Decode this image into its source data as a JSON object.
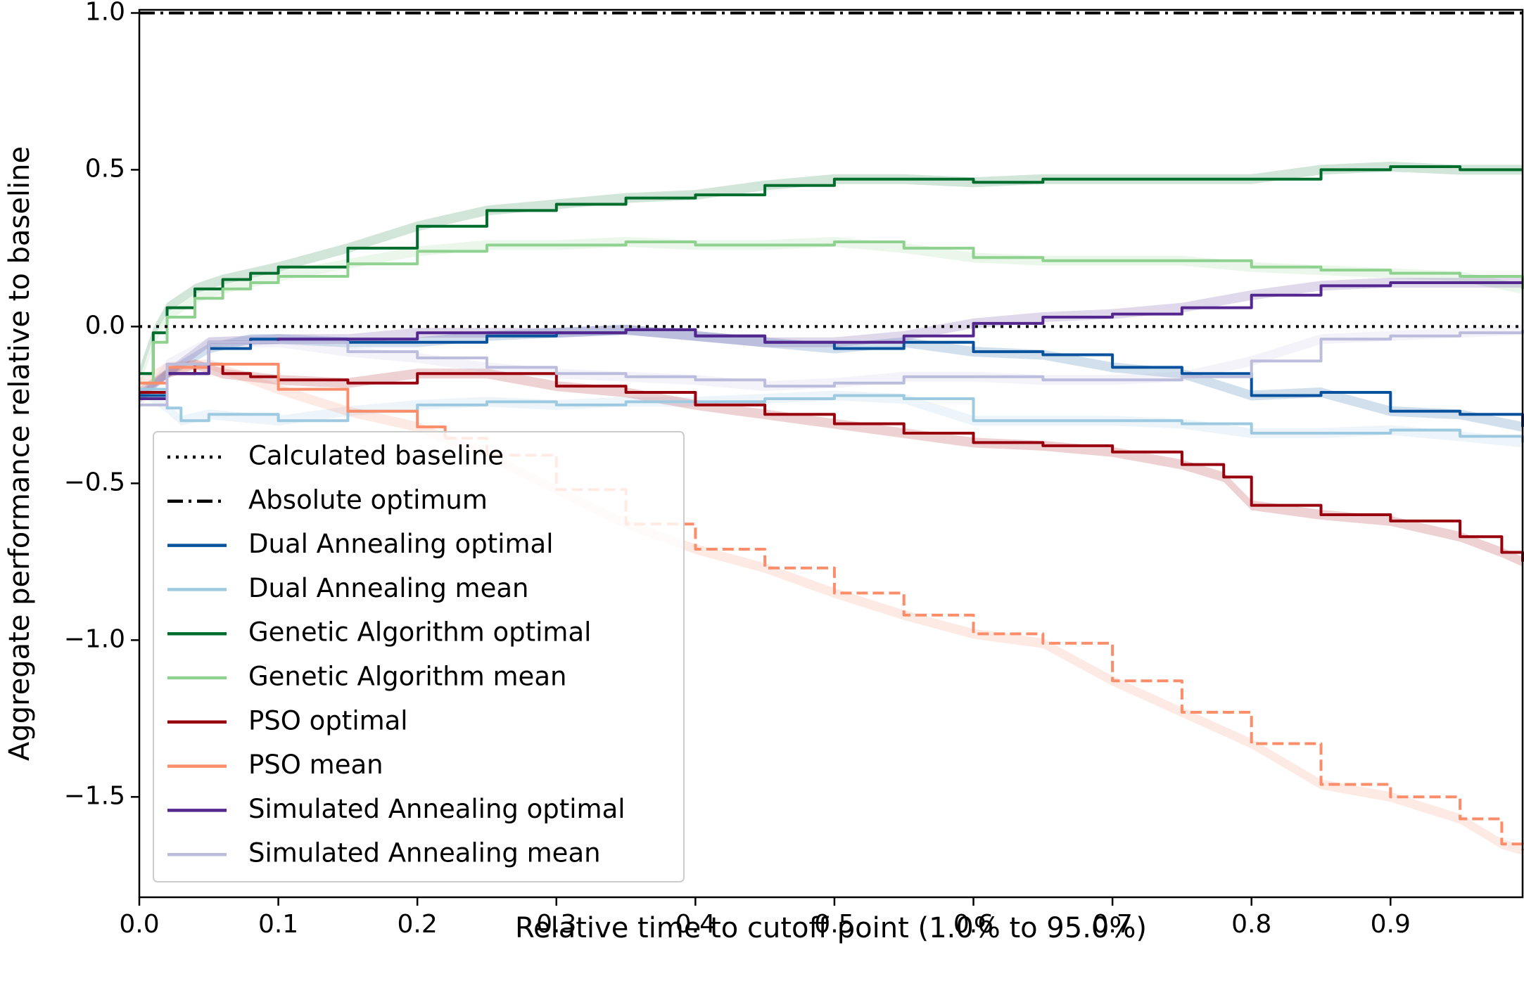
{
  "chart_data": {
    "type": "line",
    "title": "",
    "xlabel": "Relative time to cutoff point (1.0% to 95.0%)",
    "ylabel": "Aggregate performance relative to baseline",
    "xlim": [
      0.0,
      0.995
    ],
    "ylim": [
      -1.82,
      1.01
    ],
    "xticks": [
      0.0,
      0.1,
      0.2,
      0.3,
      0.4,
      0.5,
      0.6,
      0.7,
      0.8,
      0.9
    ],
    "xtick_labels": [
      "0.0",
      "0.1",
      "0.2",
      "0.3",
      "0.4",
      "0.5",
      "0.6",
      "0.7",
      "0.8",
      "0.9"
    ],
    "yticks": [
      1.0,
      0.5,
      0.0,
      -0.5,
      -1.0,
      -1.5
    ],
    "ytick_labels": [
      "1.0",
      "0.5",
      "0.0",
      "−0.5",
      "−1.0",
      "−1.5"
    ],
    "grid": false,
    "legend_position": "lower-left",
    "reference_lines": [
      {
        "name": "Calculated baseline",
        "y": 0.0,
        "style": "dotted",
        "color": "#000000"
      },
      {
        "name": "Absolute optimum",
        "y": 1.0,
        "style": "dashdot",
        "color": "#000000"
      }
    ],
    "series": [
      {
        "name": "Dual Annealing optimal",
        "color": "#08519c",
        "dashed": false,
        "x": [
          0.0,
          0.02,
          0.05,
          0.08,
          0.1,
          0.15,
          0.2,
          0.25,
          0.3,
          0.35,
          0.4,
          0.45,
          0.5,
          0.55,
          0.6,
          0.65,
          0.7,
          0.75,
          0.8,
          0.85,
          0.9,
          0.95,
          0.995
        ],
        "y": [
          -0.22,
          -0.15,
          -0.07,
          -0.04,
          -0.04,
          -0.05,
          -0.05,
          -0.03,
          -0.02,
          -0.01,
          -0.03,
          -0.05,
          -0.07,
          -0.05,
          -0.08,
          -0.09,
          -0.13,
          -0.15,
          -0.22,
          -0.21,
          -0.27,
          -0.28,
          -0.32
        ]
      },
      {
        "name": "Dual Annealing mean",
        "color": "#9ecae1",
        "dashed": false,
        "x": [
          0.0,
          0.02,
          0.03,
          0.05,
          0.1,
          0.15,
          0.2,
          0.25,
          0.3,
          0.35,
          0.4,
          0.45,
          0.5,
          0.55,
          0.6,
          0.65,
          0.7,
          0.75,
          0.8,
          0.85,
          0.9,
          0.95,
          0.995
        ],
        "y": [
          -0.2,
          -0.26,
          -0.3,
          -0.28,
          -0.3,
          -0.27,
          -0.25,
          -0.24,
          -0.25,
          -0.24,
          -0.24,
          -0.23,
          -0.22,
          -0.23,
          -0.3,
          -0.3,
          -0.3,
          -0.31,
          -0.34,
          -0.34,
          -0.33,
          -0.35,
          -0.37
        ]
      },
      {
        "name": "Genetic Algorithm optimal",
        "color": "#006d2c",
        "dashed": false,
        "x": [
          0.0,
          0.01,
          0.02,
          0.04,
          0.06,
          0.08,
          0.1,
          0.15,
          0.2,
          0.25,
          0.3,
          0.35,
          0.4,
          0.45,
          0.5,
          0.55,
          0.6,
          0.65,
          0.7,
          0.75,
          0.8,
          0.85,
          0.9,
          0.95,
          0.995
        ],
        "y": [
          -0.15,
          -0.02,
          0.06,
          0.12,
          0.15,
          0.17,
          0.19,
          0.25,
          0.32,
          0.37,
          0.39,
          0.41,
          0.42,
          0.45,
          0.47,
          0.47,
          0.46,
          0.47,
          0.47,
          0.47,
          0.47,
          0.5,
          0.51,
          0.5,
          0.5
        ]
      },
      {
        "name": "Genetic Algorithm mean",
        "color": "#8fd18e",
        "dashed": false,
        "x": [
          0.0,
          0.01,
          0.02,
          0.04,
          0.06,
          0.08,
          0.1,
          0.15,
          0.2,
          0.25,
          0.3,
          0.35,
          0.4,
          0.45,
          0.5,
          0.55,
          0.6,
          0.65,
          0.7,
          0.75,
          0.8,
          0.85,
          0.9,
          0.95,
          0.995
        ],
        "y": [
          -0.18,
          -0.05,
          0.03,
          0.09,
          0.12,
          0.14,
          0.16,
          0.2,
          0.24,
          0.26,
          0.26,
          0.27,
          0.26,
          0.26,
          0.27,
          0.25,
          0.22,
          0.21,
          0.21,
          0.21,
          0.19,
          0.18,
          0.17,
          0.16,
          0.12
        ]
      },
      {
        "name": "PSO optimal",
        "color": "#99000d",
        "dashed": false,
        "x": [
          0.0,
          0.02,
          0.04,
          0.06,
          0.08,
          0.1,
          0.15,
          0.2,
          0.25,
          0.3,
          0.35,
          0.4,
          0.45,
          0.5,
          0.55,
          0.6,
          0.65,
          0.7,
          0.75,
          0.78,
          0.8,
          0.85,
          0.9,
          0.95,
          0.98,
          0.995
        ],
        "y": [
          -0.21,
          -0.15,
          -0.12,
          -0.15,
          -0.16,
          -0.17,
          -0.18,
          -0.15,
          -0.15,
          -0.19,
          -0.21,
          -0.25,
          -0.28,
          -0.31,
          -0.34,
          -0.37,
          -0.38,
          -0.4,
          -0.44,
          -0.48,
          -0.57,
          -0.6,
          -0.62,
          -0.67,
          -0.72,
          -0.75
        ]
      },
      {
        "name": "PSO mean",
        "color": "#fc8d6a",
        "dashed": true,
        "dashed_from_x": 0.22,
        "x": [
          0.0,
          0.02,
          0.05,
          0.1,
          0.15,
          0.2,
          0.25,
          0.3,
          0.35,
          0.4,
          0.45,
          0.5,
          0.55,
          0.6,
          0.65,
          0.7,
          0.75,
          0.8,
          0.85,
          0.9,
          0.95,
          0.98,
          0.995
        ],
        "y": [
          -0.18,
          -0.13,
          -0.12,
          -0.2,
          -0.27,
          -0.32,
          -0.41,
          -0.52,
          -0.63,
          -0.71,
          -0.77,
          -0.85,
          -0.92,
          -0.98,
          -1.01,
          -1.13,
          -1.23,
          -1.33,
          -1.46,
          -1.5,
          -1.57,
          -1.65,
          -1.67
        ]
      },
      {
        "name": "Simulated Annealing optimal",
        "color": "#54278f",
        "dashed": false,
        "x": [
          0.0,
          0.02,
          0.05,
          0.1,
          0.15,
          0.2,
          0.25,
          0.3,
          0.35,
          0.4,
          0.45,
          0.5,
          0.55,
          0.6,
          0.65,
          0.7,
          0.75,
          0.8,
          0.85,
          0.9,
          0.95,
          0.995
        ],
        "y": [
          -0.23,
          -0.15,
          -0.05,
          -0.04,
          -0.04,
          -0.02,
          -0.02,
          -0.02,
          -0.01,
          -0.03,
          -0.05,
          -0.05,
          -0.03,
          0.01,
          0.03,
          0.04,
          0.06,
          0.1,
          0.13,
          0.14,
          0.14,
          0.14
        ]
      },
      {
        "name": "Simulated Annealing mean",
        "color": "#bcbddc",
        "dashed": false,
        "x": [
          0.0,
          0.02,
          0.05,
          0.1,
          0.15,
          0.2,
          0.25,
          0.3,
          0.35,
          0.4,
          0.45,
          0.5,
          0.55,
          0.6,
          0.65,
          0.7,
          0.75,
          0.8,
          0.85,
          0.9,
          0.95,
          0.995
        ],
        "y": [
          -0.25,
          -0.12,
          -0.05,
          -0.05,
          -0.08,
          -0.1,
          -0.13,
          -0.15,
          -0.16,
          -0.17,
          -0.19,
          -0.18,
          -0.16,
          -0.16,
          -0.17,
          -0.17,
          -0.16,
          -0.11,
          -0.04,
          -0.03,
          -0.02,
          -0.01
        ]
      }
    ]
  }
}
